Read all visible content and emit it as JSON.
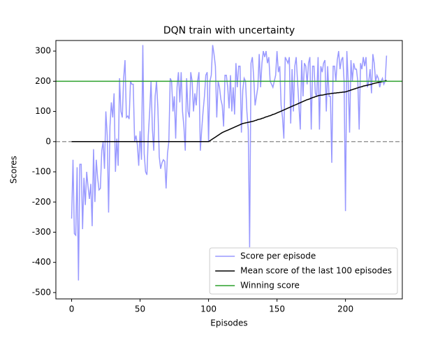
{
  "chart_data": {
    "type": "line",
    "title": "DQN train with uncertainty",
    "x_label": "Episodes",
    "y_label": "Scores",
    "x": [
      0,
      1,
      2,
      3,
      4,
      5,
      6,
      7,
      8,
      9,
      10,
      11,
      12,
      13,
      14,
      15,
      16,
      17,
      18,
      19,
      20,
      21,
      22,
      23,
      24,
      25,
      26,
      27,
      28,
      29,
      30,
      31,
      32,
      33,
      34,
      35,
      36,
      37,
      38,
      39,
      40,
      41,
      42,
      43,
      44,
      45,
      46,
      47,
      48,
      49,
      50,
      51,
      52,
      53,
      54,
      55,
      56,
      57,
      58,
      59,
      60,
      61,
      62,
      63,
      64,
      65,
      66,
      67,
      68,
      69,
      70,
      71,
      72,
      73,
      74,
      75,
      76,
      77,
      78,
      79,
      80,
      81,
      82,
      83,
      84,
      85,
      86,
      87,
      88,
      89,
      90,
      91,
      92,
      93,
      94,
      95,
      96,
      97,
      98,
      99,
      100,
      101,
      102,
      103,
      104,
      105,
      106,
      107,
      108,
      109,
      110,
      111,
      112,
      113,
      114,
      115,
      116,
      117,
      118,
      119,
      120,
      121,
      122,
      123,
      124,
      125,
      126,
      127,
      128,
      129,
      130,
      131,
      132,
      133,
      134,
      135,
      136,
      137,
      138,
      139,
      140,
      141,
      142,
      143,
      144,
      145,
      146,
      147,
      148,
      149,
      150,
      151,
      152,
      153,
      154,
      155,
      156,
      157,
      158,
      159,
      160,
      161,
      162,
      163,
      164,
      165,
      166,
      167,
      168,
      169,
      170,
      171,
      172,
      173,
      174,
      175,
      176,
      177,
      178,
      179,
      180,
      181,
      182,
      183,
      184,
      185,
      186,
      187,
      188,
      189,
      190,
      191,
      192,
      193,
      194,
      195,
      196,
      197,
      198,
      199,
      200,
      201,
      202,
      203,
      204,
      205,
      206,
      207,
      208,
      209,
      210,
      211,
      212,
      213,
      214,
      215,
      216,
      217,
      218,
      219,
      220,
      221,
      222,
      223,
      224,
      225,
      226,
      227,
      228,
      229,
      230
    ],
    "series": [
      {
        "name": "Score per episode",
        "color": "#9999ff",
        "values": [
          -255,
          -60,
          -305,
          -310,
          -85,
          -460,
          -75,
          -75,
          -290,
          -120,
          -210,
          -100,
          -150,
          -190,
          -140,
          -280,
          -25,
          -200,
          -60,
          -120,
          -160,
          -155,
          -30,
          0,
          -90,
          100,
          20,
          -235,
          50,
          130,
          80,
          160,
          -100,
          10,
          -80,
          210,
          100,
          80,
          210,
          270,
          80,
          85,
          75,
          200,
          190,
          190,
          0,
          20,
          -10,
          -80,
          35,
          -60,
          320,
          -40,
          -100,
          -110,
          20,
          100,
          200,
          40,
          -30,
          150,
          200,
          110,
          -50,
          -90,
          -70,
          -60,
          -65,
          -155,
          -40,
          0,
          210,
          200,
          100,
          150,
          10,
          180,
          230,
          130,
          230,
          100,
          50,
          -30,
          210,
          100,
          80,
          230,
          200,
          100,
          160,
          120,
          200,
          230,
          -30,
          40,
          100,
          150,
          220,
          230,
          0,
          200,
          220,
          320,
          290,
          250,
          80,
          200,
          180,
          140,
          120,
          50,
          220,
          220,
          180,
          110,
          220,
          100,
          180,
          90,
          260,
          180,
          250,
          250,
          30,
          170,
          210,
          200,
          100,
          40,
          -350,
          260,
          280,
          210,
          120,
          150,
          180,
          290,
          180,
          260,
          300,
          280,
          300,
          260,
          280,
          200,
          190,
          180,
          200,
          220,
          300,
          230,
          250,
          120,
          80,
          10,
          280,
          270,
          260,
          280,
          60,
          240,
          100,
          250,
          280,
          200,
          120,
          40,
          270,
          150,
          260,
          250,
          190,
          260,
          280,
          40,
          250,
          250,
          160,
          150,
          280,
          40,
          250,
          230,
          260,
          270,
          100,
          250,
          150,
          150,
          -70,
          250,
          250,
          200,
          270,
          300,
          240,
          270,
          280,
          200,
          -230,
          300,
          200,
          30,
          270,
          200,
          260,
          240,
          240,
          200,
          40,
          260,
          240,
          280,
          250,
          280,
          180,
          200,
          240,
          160,
          290,
          260,
          200,
          220,
          210,
          180,
          200,
          210,
          190,
          200,
          285
        ]
      },
      {
        "name": "Mean score of the last 100 episodes",
        "color": "#000000",
        "values": [
          0,
          0,
          0,
          0,
          0,
          0,
          0,
          0,
          0,
          0,
          0,
          0,
          0,
          0,
          0,
          0,
          0,
          0,
          0,
          0,
          0,
          0,
          0,
          0,
          0,
          0,
          0,
          0,
          0,
          0,
          0,
          0,
          0,
          0,
          0,
          0,
          0,
          0,
          0,
          0,
          0,
          0,
          0,
          0,
          0,
          0,
          0,
          0,
          0,
          0,
          0,
          0,
          0,
          0,
          0,
          0,
          0,
          0,
          0,
          0,
          0,
          0,
          0,
          0,
          0,
          0,
          0,
          0,
          0,
          0,
          0,
          0,
          0,
          0,
          0,
          0,
          0,
          0,
          0,
          0,
          0,
          0,
          0,
          0,
          0,
          0,
          0,
          0,
          0,
          0,
          0,
          0,
          0,
          0,
          0,
          0,
          0,
          0,
          0,
          0,
          0,
          3,
          6,
          9,
          12,
          15,
          18,
          21,
          24,
          27,
          30,
          32,
          34,
          36,
          38,
          40,
          42,
          44,
          46,
          48,
          50,
          52,
          54,
          56,
          58,
          60,
          61,
          62,
          63,
          64,
          65,
          66,
          67,
          68,
          70,
          71,
          73,
          74,
          75,
          77,
          78,
          80,
          82,
          83,
          85,
          86,
          88,
          90,
          91,
          93,
          95,
          97,
          99,
          101,
          103,
          105,
          107,
          109,
          111,
          113,
          115,
          117,
          119,
          121,
          123,
          125,
          127,
          129,
          131,
          133,
          135,
          137,
          139,
          140,
          142,
          144,
          146,
          147,
          149,
          150,
          152,
          153,
          154,
          154,
          155,
          156,
          157,
          158,
          158,
          159,
          160,
          160,
          161,
          161,
          162,
          162,
          163,
          163,
          164,
          164,
          165,
          166,
          168,
          169,
          171,
          172,
          174,
          175,
          177,
          178,
          180,
          181,
          182,
          184,
          185,
          186,
          187,
          188,
          189,
          190,
          192,
          193,
          194,
          195,
          196,
          197,
          198,
          199,
          200,
          201,
          203
        ]
      }
    ],
    "reference_lines": [
      {
        "name": "Winning score",
        "value": 200,
        "color": "#2ca02c",
        "dashed": false
      },
      {
        "value": 0,
        "color": "#999999",
        "dashed": true
      }
    ],
    "xlim": [
      -11.5,
      241.5
    ],
    "ylim": [
      -521,
      335
    ],
    "xticks": [
      0,
      50,
      100,
      150,
      200
    ],
    "yticks": [
      -500,
      -400,
      -300,
      -200,
      -100,
      0,
      100,
      200,
      300
    ],
    "legend": "lower right",
    "grid": false
  }
}
